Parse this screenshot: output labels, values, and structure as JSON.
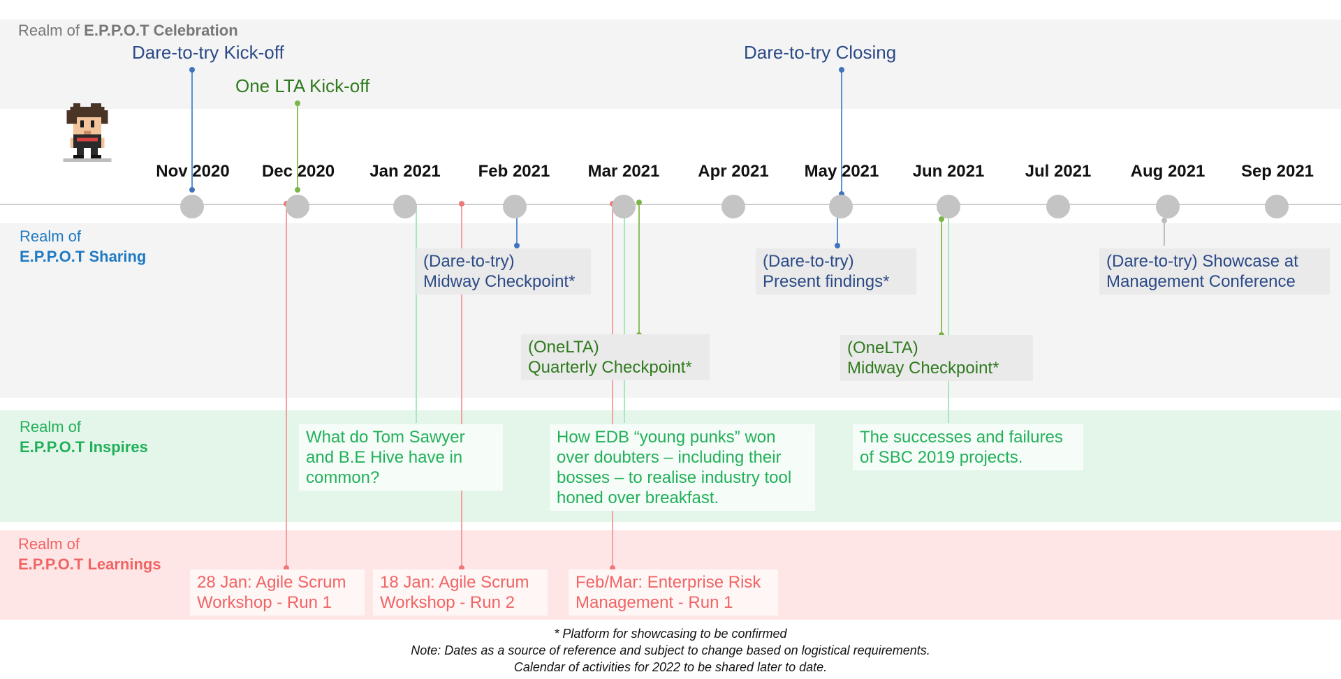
{
  "colors": {
    "celebration_band": "#f4f4f4",
    "sharing_band": "#f4f4f4",
    "inspires_band": "#e4f6ea",
    "learnings_band": "#ffe6e6",
    "blue_text": "#2b4a86",
    "realm_blue": "#1f7ac2",
    "green_text": "#2f7a1e",
    "teal_text": "#22b05a",
    "red_text": "#f06464",
    "grey_text": "#666666",
    "timeline": "#cccccc",
    "month_dot": "#c4c4c4"
  },
  "realms": {
    "celebration": {
      "prefix": "Realm of ",
      "name": "E.P.P.O.T Celebration"
    },
    "sharing": {
      "prefix": "Realm of",
      "name": "E.P.P.O.T Sharing"
    },
    "inspires": {
      "prefix": "Realm of",
      "name": "E.P.P.O.T Inspires"
    },
    "learnings": {
      "prefix": "Realm of",
      "name": "E.P.P.O.T Learnings"
    }
  },
  "months": [
    "Nov 2020",
    "Dec 2020",
    "Jan 2021",
    "Feb 2021",
    "Mar 2021",
    "Apr 2021",
    "May 2021",
    "Jun 2021",
    "Jul 2021",
    "Aug 2021",
    "Sep 2021"
  ],
  "events": {
    "celebration": [
      {
        "text": "Dare-to-try Kick-off",
        "color": "blue"
      },
      {
        "text": "One LTA Kick-off",
        "color": "green"
      },
      {
        "text": "Dare-to-try Closing",
        "color": "blue"
      }
    ],
    "sharing": [
      {
        "line1": "(Dare-to-try)",
        "line2": "Midway Checkpoint*"
      },
      {
        "line1": "(Dare-to-try)",
        "line2": "Present findings*"
      },
      {
        "line1": "(Dare-to-try) Showcase at",
        "line2": "Management Conference"
      },
      {
        "line1": "(OneLTA)",
        "line2": "Quarterly Checkpoint*"
      },
      {
        "line1": "(OneLTA)",
        "line2": "Midway Checkpoint*"
      }
    ],
    "inspires": [
      {
        "line1": "What do Tom Sawyer",
        "line2": "and B.E Hive have in",
        "line3": "common?"
      },
      {
        "line1": "How EDB “young punks” won",
        "line2": "over doubters – including their",
        "line3": "bosses – to realise industry tool",
        "line4": "honed over breakfast."
      },
      {
        "line1": "The successes and failures",
        "line2": "of SBC 2019 projects."
      }
    ],
    "learnings": [
      {
        "line1": "28 Jan: Agile Scrum",
        "line2": "Workshop - Run 1"
      },
      {
        "line1": "18 Jan: Agile Scrum",
        "line2": "Workshop - Run 2"
      },
      {
        "line1": "Feb/Mar: Enterprise Risk",
        "line2": "Management - Run 1"
      }
    ]
  },
  "notes": {
    "line1": "* Platform for showcasing to be confirmed",
    "line2": "Note: Dates as a source of reference and subject to change based on logistical requirements.",
    "line3": "Calendar of activities for 2022 to be shared later to date."
  },
  "icons": {
    "avatar": "pixel-character-avatar"
  }
}
